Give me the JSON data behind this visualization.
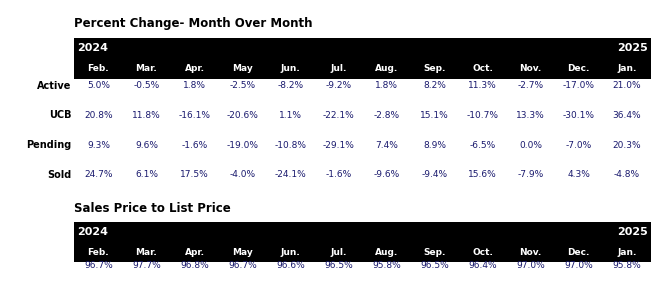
{
  "title1": "Percent Change- Month Over Month",
  "title2": "Sales Price to List Price",
  "year_left": "2024",
  "year_right": "2025",
  "months": [
    "Feb.",
    "Mar.",
    "Apr.",
    "May",
    "Jun.",
    "Jul.",
    "Aug.",
    "Sep.",
    "Oct.",
    "Nov.",
    "Dec.",
    "Jan."
  ],
  "rows": [
    {
      "label": "Active",
      "values": [
        "5.0%",
        "-0.5%",
        "1.8%",
        "-2.5%",
        "-8.2%",
        "-9.2%",
        "1.8%",
        "8.2%",
        "11.3%",
        "-2.7%",
        "-17.0%",
        "21.0%"
      ]
    },
    {
      "label": "UCB",
      "values": [
        "20.8%",
        "11.8%",
        "-16.1%",
        "-20.6%",
        "1.1%",
        "-22.1%",
        "-2.8%",
        "15.1%",
        "-10.7%",
        "13.3%",
        "-30.1%",
        "36.4%"
      ]
    },
    {
      "label": "Pending",
      "values": [
        "9.3%",
        "9.6%",
        "-1.6%",
        "-19.0%",
        "-10.8%",
        "-29.1%",
        "7.4%",
        "8.9%",
        "-6.5%",
        "0.0%",
        "-7.0%",
        "20.3%"
      ]
    },
    {
      "label": "Sold",
      "values": [
        "24.7%",
        "6.1%",
        "17.5%",
        "-4.0%",
        "-24.1%",
        "-1.6%",
        "-9.6%",
        "-9.4%",
        "15.6%",
        "-7.9%",
        "4.3%",
        "-4.8%"
      ]
    }
  ],
  "sp_values": [
    "96.7%",
    "97.7%",
    "96.8%",
    "96.7%",
    "96.6%",
    "96.5%",
    "95.8%",
    "96.5%",
    "96.4%",
    "97.0%",
    "97.0%",
    "95.8%"
  ],
  "header_bg": "#000000",
  "header_fg": "#ffffff",
  "bg_color": "#ffffff",
  "label_color": "#000000",
  "data_color": "#1a1a6e",
  "title_color": "#000000"
}
